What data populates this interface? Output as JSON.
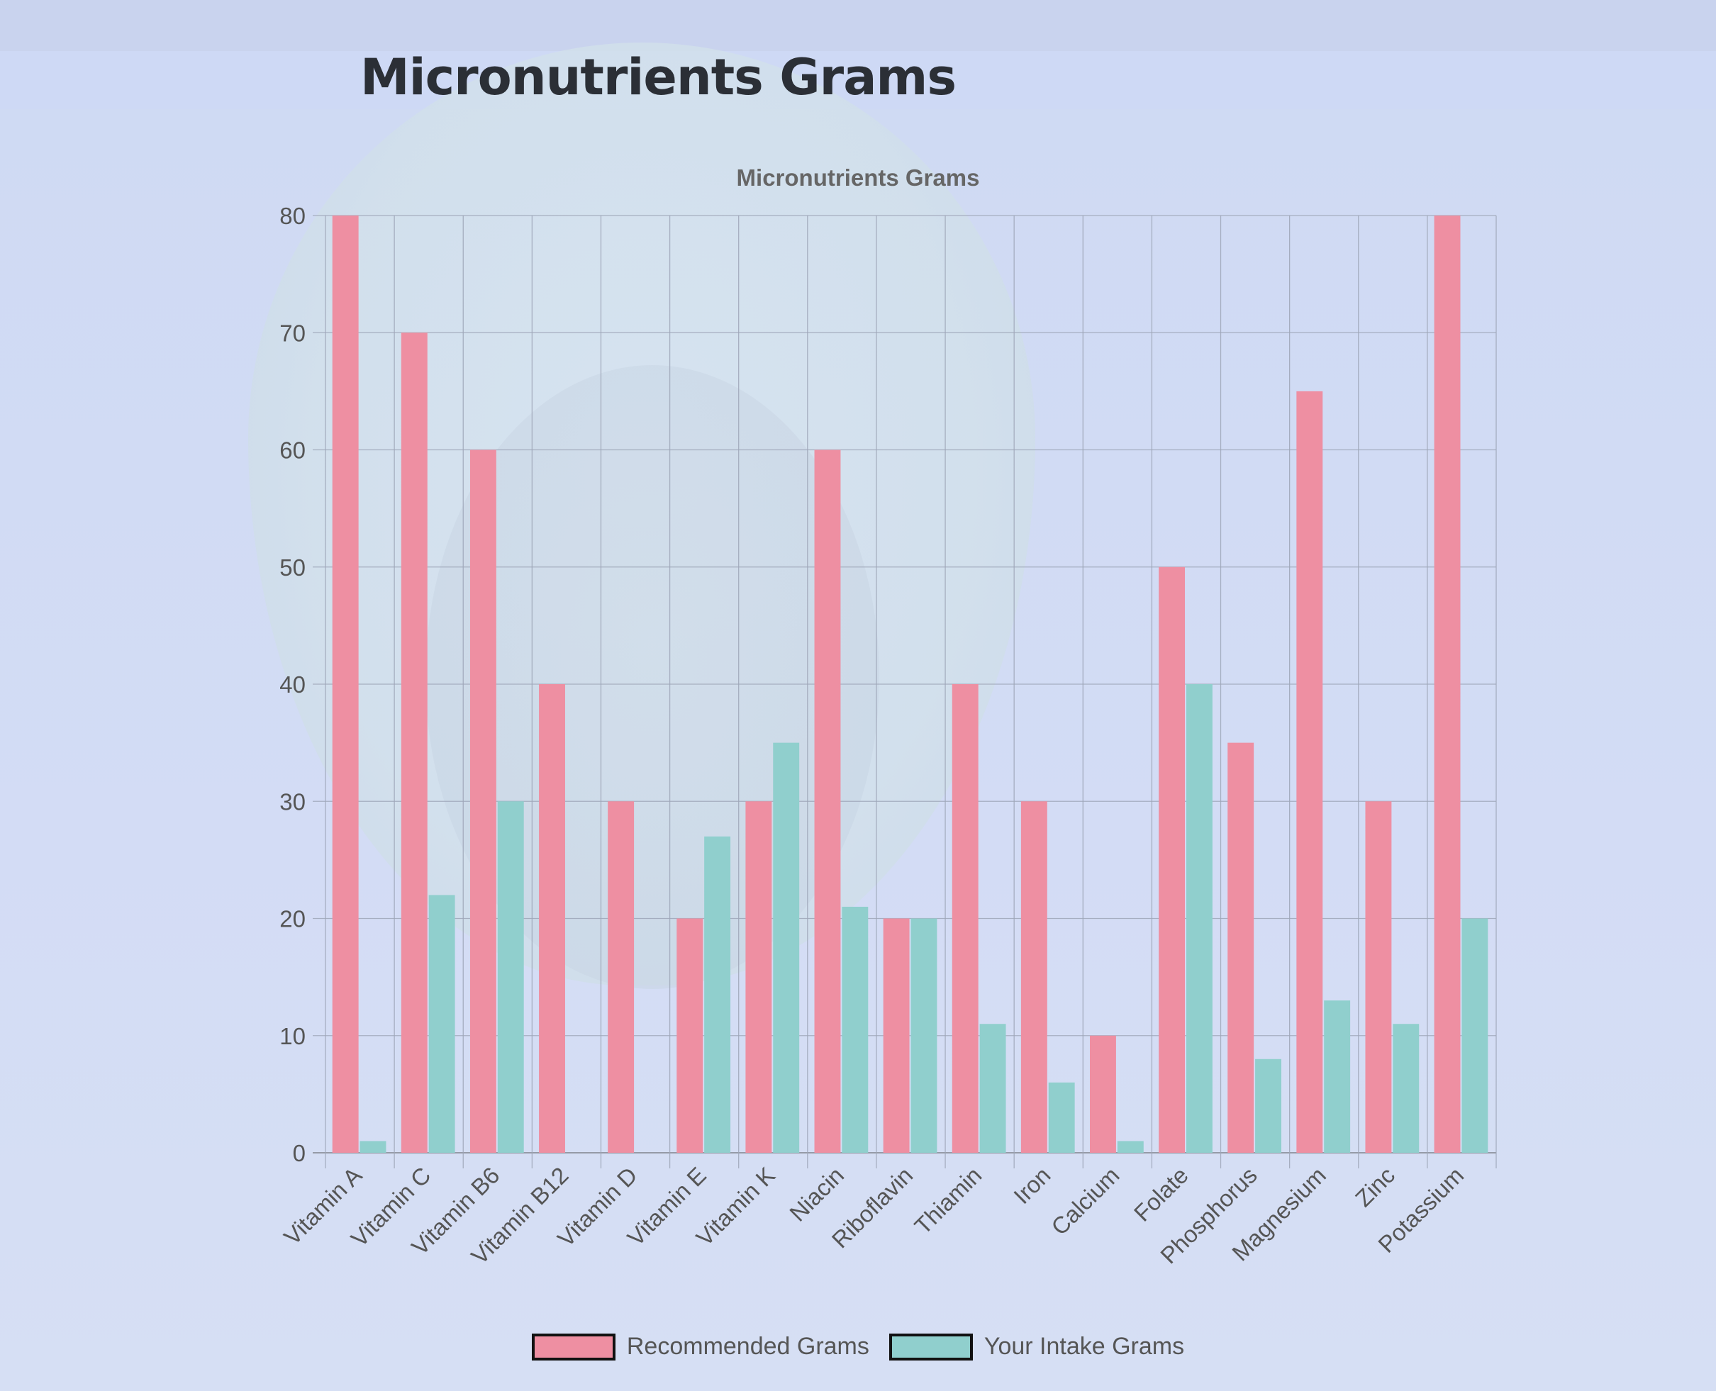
{
  "page": {
    "title": "Micronutrients Grams"
  },
  "chart_data": {
    "type": "bar",
    "title": "Micronutrients Grams",
    "xlabel": "",
    "ylabel": "",
    "ylim": [
      0,
      80
    ],
    "yticks": [
      0,
      10,
      20,
      30,
      40,
      50,
      60,
      70,
      80
    ],
    "grid": true,
    "legend_position": "bottom",
    "categories": [
      "Vitamin A",
      "Vitamin C",
      "Vitamin B6",
      "Vitamin B12",
      "Vitamin D",
      "Vitamin E",
      "Vitamin K",
      "Niacin",
      "Riboflavin",
      "Thiamin",
      "Iron",
      "Calcium",
      "Folate",
      "Phosphorus",
      "Magnesium",
      "Zinc",
      "Potassium"
    ],
    "series": [
      {
        "name": "Recommended Grams",
        "color": "#ee8fa2",
        "values": [
          80,
          70,
          60,
          40,
          30,
          20,
          30,
          60,
          20,
          40,
          30,
          10,
          50,
          35,
          65,
          30,
          80
        ]
      },
      {
        "name": "Your Intake Grams",
        "color": "#90cfcd",
        "values": [
          1,
          22,
          30,
          0,
          0,
          27,
          35,
          21,
          20,
          11,
          6,
          1,
          40,
          8,
          13,
          11,
          20
        ]
      }
    ]
  }
}
